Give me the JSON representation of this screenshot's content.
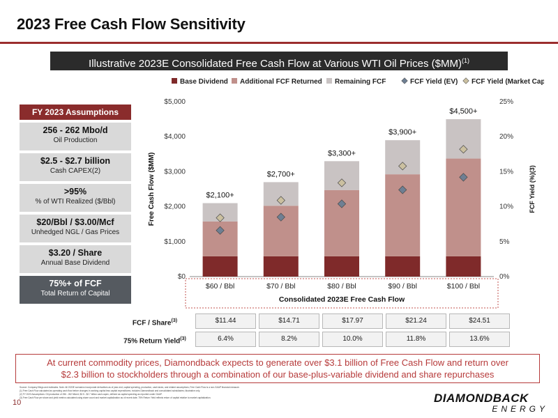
{
  "slide": {
    "title": "2023 Free Cash Flow Sensitivity",
    "banner_text": "Illustrative 2023E Consolidated Free Cash Flow at Various WTI Oil Prices ($MM)",
    "banner_sup": "(1)",
    "page_number": "10"
  },
  "assumptions": {
    "header": "FY 2023 Assumptions",
    "items": [
      {
        "big": "256 - 262 Mbo/d",
        "small": "Oil Production"
      },
      {
        "big": "$2.5 - $2.7 billion",
        "small": "Cash CAPEX(2)"
      },
      {
        "big": ">95%",
        "small": "% of WTI Realized ($/Bbl)"
      },
      {
        "big": "$20/Bbl / $3.00/Mcf",
        "small": "Unhedged NGL / Gas Prices"
      },
      {
        "big": "$3.20 / Share",
        "small": "Annual Base Dividend"
      },
      {
        "big": "75%+ of FCF",
        "small": "Total Return of Capital"
      }
    ]
  },
  "chart_data": {
    "type": "bar",
    "stacked": true,
    "xlabel": "Consolidated 2023E Free Cash Flow",
    "ylabel": "Free Cash Flow ($MM)",
    "y2label": "FCF Yield (%)(3)",
    "ylim": [
      0,
      5000
    ],
    "y2lim": [
      0,
      25
    ],
    "y_ticks": [
      "$0",
      "$1,000",
      "$2,000",
      "$3,000",
      "$4,000",
      "$5,000"
    ],
    "y2_ticks": [
      "0%",
      "5%",
      "10%",
      "15%",
      "20%",
      "25%"
    ],
    "categories": [
      "$60 / Bbl",
      "$70 / Bbl",
      "$80 / Bbl",
      "$90 / Bbl",
      "$100 / Bbl"
    ],
    "total_labels": [
      "$2,100+",
      "$2,700+",
      "$3,300+",
      "$3,900+",
      "$4,500+"
    ],
    "legend_position": "top",
    "grid": false,
    "series": [
      {
        "name": "Base Dividend",
        "kind": "bar",
        "color": "#7f2a2a",
        "values": [
          580,
          580,
          580,
          580,
          580
        ]
      },
      {
        "name": "Additional FCF Returned",
        "kind": "bar",
        "color": "#c0908b",
        "values": [
          995,
          1445,
          1895,
          2345,
          2795
        ]
      },
      {
        "name": "Remaining FCF",
        "kind": "bar",
        "color": "#c9c3c3",
        "values": [
          525,
          675,
          825,
          975,
          1125
        ]
      },
      {
        "name": "FCF Yield (EV)",
        "kind": "marker",
        "color": "#6e7f93",
        "values": [
          6.6,
          8.5,
          10.4,
          12.4,
          14.2
        ]
      },
      {
        "name": "FCF Yield (Market Cap)",
        "kind": "marker",
        "color": "#cbc0a0",
        "values": [
          8.4,
          10.9,
          13.4,
          15.8,
          18.2
        ]
      }
    ]
  },
  "table": {
    "rows": [
      {
        "label": "FCF / Share",
        "sup": "(3)",
        "values": [
          "$11.44",
          "$14.71",
          "$17.97",
          "$21.24",
          "$24.51"
        ]
      },
      {
        "label": "75% Return Yield",
        "sup": "(3)",
        "values": [
          "6.4%",
          "8.2%",
          "10.0%",
          "11.8%",
          "13.6%"
        ]
      }
    ]
  },
  "callout": {
    "line1": "At current commodity prices, Diamondback expects to generate over $3.1 billion of Free Cash Flow and return over",
    "line2": "$2.3 billion to stockholders through a combination of our base-plus-variable dividend and share repurchases"
  },
  "footnotes": [
    "Source: Company filings and estimates. Note: All 2023E scenarios incorporate derivatives as of year-end, capital spending, production, cash taxes, and related assumptions; Free Cash Flow is a non-GAAP financial measure.",
    "(1) Free Cash Flow calculated as operating cash flow before changes in working capital less capital expenditures; includes Diamondback and consolidated subsidiaries; illustrative only.",
    "(2) FY 2023 Assumptions: Oil production of 256 - 262 Mbo/d; $2.5 - $2.7 billion cash capex, defined as capital spending as reported under GAAP.",
    "(3) Free Cash Flow per share and yield metrics calculated using share count and market capitalization as of recent date; 75% Return Yield reflects return of capital relative to market capitalization."
  ],
  "logo": {
    "top": "DIAMONDBACK",
    "bottom": "ENERGY"
  }
}
